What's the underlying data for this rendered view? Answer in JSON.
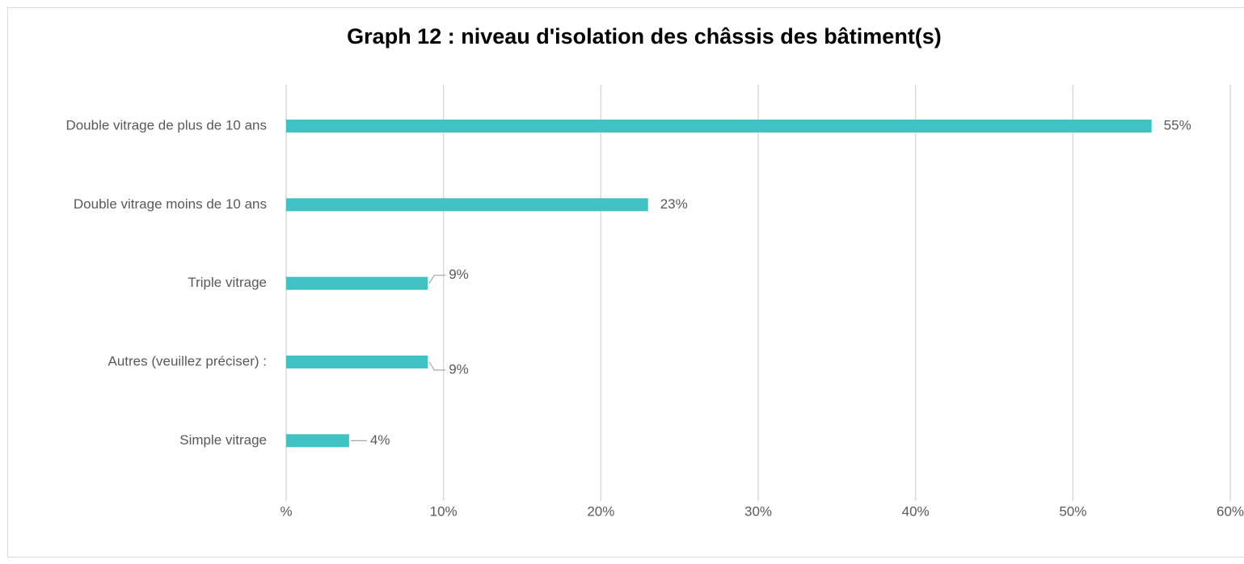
{
  "chart_data": {
    "type": "bar",
    "orientation": "horizontal",
    "title": "Graph 12 : niveau d'isolation des châssis des bâtiment(s)",
    "categories": [
      "Double vitrage de plus de 10 ans",
      "Double vitrage moins de 10 ans",
      "Triple vitrage",
      "Autres (veuillez préciser) :",
      "Simple vitrage"
    ],
    "values": [
      55,
      23,
      9,
      9,
      4
    ],
    "value_labels": [
      "55%",
      "23%",
      "9%",
      "9%",
      "4%"
    ],
    "color": "#40c1c4",
    "xlim": [
      0,
      60
    ],
    "xticks": [
      {
        "value": 0,
        "label": "%"
      },
      {
        "value": 10,
        "label": "10%"
      },
      {
        "value": 20,
        "label": "20%"
      },
      {
        "value": 30,
        "label": "30%"
      },
      {
        "value": 40,
        "label": "40%"
      },
      {
        "value": 50,
        "label": "50%"
      },
      {
        "value": 60,
        "label": "60%"
      }
    ],
    "grid": true
  }
}
